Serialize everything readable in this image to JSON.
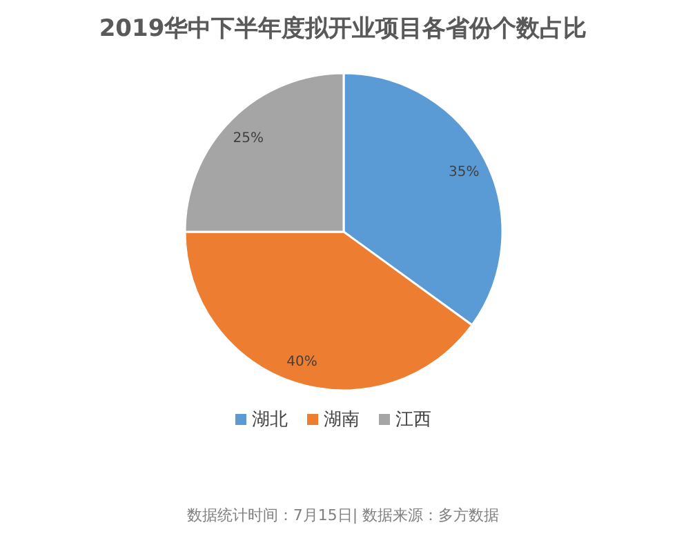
{
  "chart_data": {
    "type": "pie",
    "title": "2019华中下半年度拟开业项目各省份个数占比",
    "categories": [
      "湖北",
      "湖南",
      "江西"
    ],
    "values": [
      35,
      40,
      25
    ],
    "colors": [
      "#5b9bd5",
      "#ed7d31",
      "#a5a5a5"
    ],
    "value_labels": [
      "35%",
      "40%",
      "25%"
    ],
    "legend": "bottom",
    "annotations": [
      "数据统计时间：7月15日| 数据来源：多方数据"
    ]
  }
}
